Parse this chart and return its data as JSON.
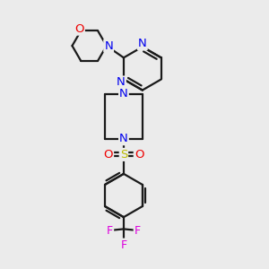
{
  "bg_color": "#ebebeb",
  "bond_color": "#1a1a1a",
  "n_color": "#0000ee",
  "o_color": "#ee0000",
  "s_color": "#bbbb00",
  "f_color": "#dd00dd",
  "line_width": 1.6,
  "fig_size": [
    3.0,
    3.0
  ],
  "dpi": 100,
  "xlim": [
    0,
    10
  ],
  "ylim": [
    0,
    10
  ]
}
